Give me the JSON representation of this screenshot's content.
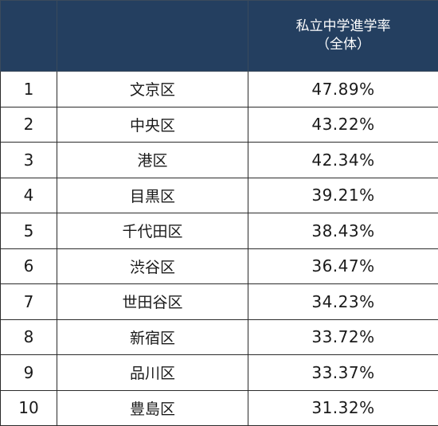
{
  "table": {
    "header": {
      "rank": "",
      "ward": "",
      "rate_line1": "私立中学進学率",
      "rate_line2": "（全体）"
    },
    "rows": [
      {
        "rank": "1",
        "ward": "文京区",
        "rate": "47.89%"
      },
      {
        "rank": "2",
        "ward": "中央区",
        "rate": "43.22%"
      },
      {
        "rank": "3",
        "ward": "港区",
        "rate": "42.34%"
      },
      {
        "rank": "4",
        "ward": "目黒区",
        "rate": "39.21%"
      },
      {
        "rank": "5",
        "ward": "千代田区",
        "rate": "38.43%"
      },
      {
        "rank": "6",
        "ward": "渋谷区",
        "rate": "36.47%"
      },
      {
        "rank": "7",
        "ward": "世田谷区",
        "rate": "34.23%"
      },
      {
        "rank": "8",
        "ward": "新宿区",
        "rate": "33.72%"
      },
      {
        "rank": "9",
        "ward": "品川区",
        "rate": "33.37%"
      },
      {
        "rank": "10",
        "ward": "豊島区",
        "rate": "31.32%"
      }
    ]
  },
  "colors": {
    "header_background": "#243f60",
    "header_text": "#ffffff",
    "grid_lines": "#2b2b2b"
  }
}
